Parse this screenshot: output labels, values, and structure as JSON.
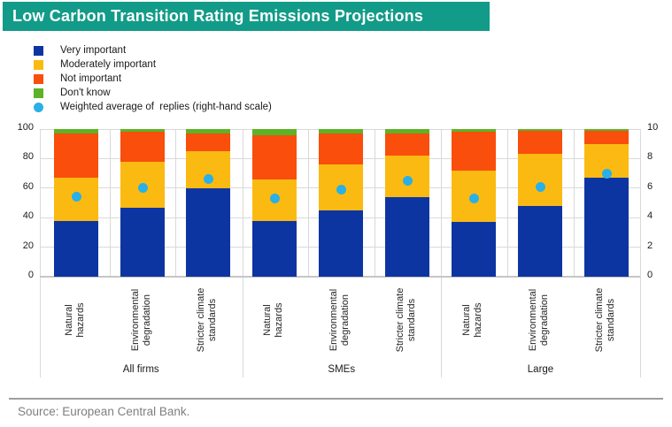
{
  "title": "Low Carbon Transition Rating Emissions Projections",
  "source": "Source: European Central Bank.",
  "colors": {
    "banner": "#129b88",
    "very_important": "#0d35a2",
    "moderately_important": "#fbba12",
    "not_important": "#f94e0c",
    "dont_know": "#5eb226",
    "weighted_average": "#29b0e6",
    "gridline": "#d9d9d9",
    "axis_line": "#c6c6c6"
  },
  "legend": [
    {
      "label": "Very important",
      "icon": "square",
      "color_key": "very_important"
    },
    {
      "label": "Moderately important",
      "icon": "square",
      "color_key": "moderately_important"
    },
    {
      "label": "Not important",
      "icon": "square",
      "color_key": "not_important"
    },
    {
      "label": "Don't know",
      "icon": "square",
      "color_key": "dont_know"
    },
    {
      "label": "Weighted average of  replies (right-hand scale)",
      "icon": "circle",
      "color_key": "weighted_average"
    }
  ],
  "chart_data": {
    "type": "bar",
    "subtype": "stacked-bars-with-dot-overlay",
    "group_labels": [
      "All firms",
      "SMEs",
      "Large"
    ],
    "category_labels": [
      "Natural\nhazards",
      "Environmental\ndegradation",
      "Stricter climate\nstandards"
    ],
    "series": [
      {
        "name": "Very important",
        "color_key": "very_important",
        "values": [
          38,
          47,
          60,
          38,
          45,
          54,
          37,
          48,
          67
        ]
      },
      {
        "name": "Moderately important",
        "color_key": "moderately_important",
        "values": [
          29,
          31,
          25,
          28,
          31,
          28,
          35,
          35,
          23
        ]
      },
      {
        "name": "Not important",
        "color_key": "not_important",
        "values": [
          30,
          20,
          12,
          30,
          21,
          15,
          26,
          16,
          9
        ]
      },
      {
        "name": "Don't know",
        "color_key": "dont_know",
        "values": [
          3,
          2,
          3,
          4,
          3,
          3,
          2,
          1,
          1
        ]
      }
    ],
    "dots": {
      "name": "Weighted average of replies (right-hand scale)",
      "color_key": "weighted_average",
      "values": [
        5.4,
        6.0,
        6.6,
        5.3,
        5.9,
        6.5,
        5.3,
        6.1,
        7.0
      ]
    },
    "left_axis": {
      "ticks": [
        0,
        20,
        40,
        60,
        80,
        100
      ],
      "range": [
        0,
        100
      ]
    },
    "right_axis": {
      "ticks": [
        0,
        2,
        4,
        6,
        8,
        10
      ],
      "range": [
        0,
        10
      ]
    },
    "grid": true,
    "legend_position": "top-left"
  }
}
